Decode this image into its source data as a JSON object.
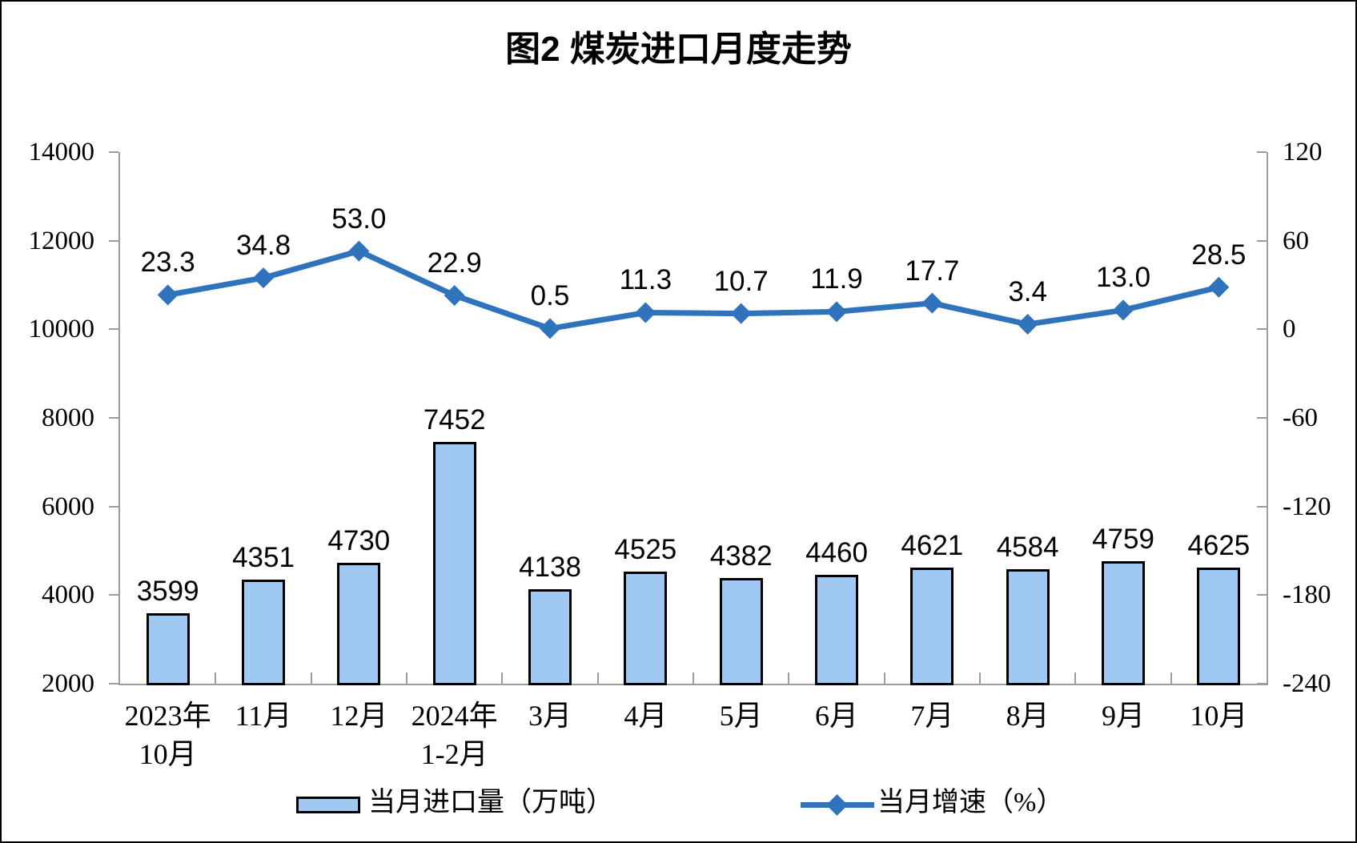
{
  "figure": {
    "title": "图2 煤炭进口月度走势",
    "background": "#FFFFFF",
    "frame_color": "#000000"
  },
  "chart_data": {
    "type": "bar",
    "subtype": "bar-line-combo",
    "title": "图2 煤炭进口月度走势",
    "grid": "off",
    "legend_position": "bottom",
    "axis_color": "#9C9C9C",
    "categories": [
      [
        "2023年",
        "10月"
      ],
      [
        "11月"
      ],
      [
        "12月"
      ],
      [
        "2024年",
        "1-2月"
      ],
      [
        "3月"
      ],
      [
        "4月"
      ],
      [
        "5月"
      ],
      [
        "6月"
      ],
      [
        "7月"
      ],
      [
        "8月"
      ],
      [
        "9月"
      ],
      [
        "10月"
      ]
    ],
    "series": [
      {
        "name": "当月进口量（万吨）",
        "type": "bar",
        "axis": "left",
        "values": [
          3599,
          4351,
          4730,
          7452,
          4138,
          4525,
          4382,
          4460,
          4621,
          4584,
          4759,
          4625
        ],
        "labels": [
          "3599",
          "4351",
          "4730",
          "7452",
          "4138",
          "4525",
          "4382",
          "4460",
          "4621",
          "4584",
          "4759",
          "4625"
        ],
        "fill": "#9FC8F2",
        "border": "#000000"
      },
      {
        "name": "当月增速（%）",
        "type": "line",
        "axis": "right",
        "values": [
          23.3,
          34.8,
          53.0,
          22.9,
          0.5,
          11.3,
          10.7,
          11.9,
          17.7,
          3.4,
          13.0,
          28.5
        ],
        "labels": [
          "23.3",
          "34.8",
          "53.0",
          "22.9",
          "0.5",
          "11.3",
          "10.7",
          "11.9",
          "17.7",
          "3.4",
          "13.0",
          "28.5"
        ],
        "color": "#2E73BB",
        "marker": "diamond"
      }
    ],
    "left_axis": {
      "min": 2000,
      "max": 14000,
      "step": 2000,
      "ticks": [
        "14000",
        "12000",
        "10000",
        "8000",
        "6000",
        "4000",
        "2000"
      ]
    },
    "right_axis": {
      "min": -240,
      "max": 120,
      "step": 60,
      "ticks": [
        "120",
        "60",
        "0",
        "-60",
        "-120",
        "-180",
        "-240"
      ]
    }
  }
}
